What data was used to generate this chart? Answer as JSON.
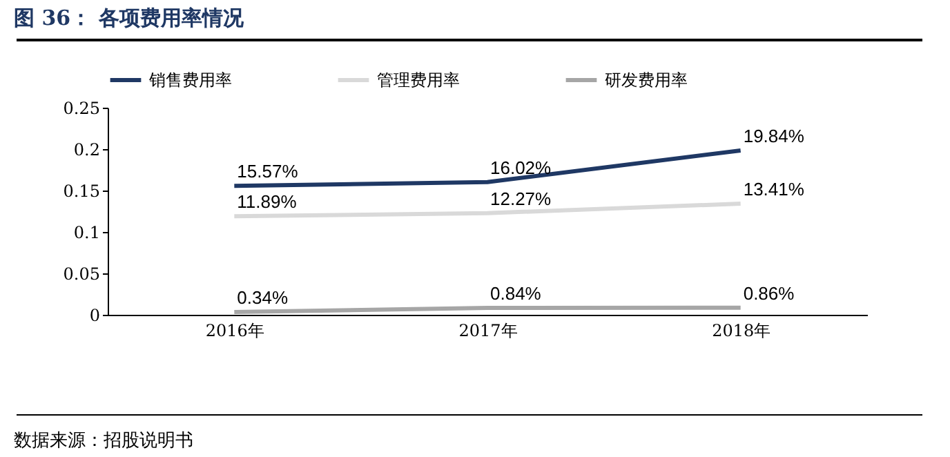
{
  "chart_data": {
    "type": "line",
    "title": "图 36：  各项费用率情况",
    "categories": [
      "2016年",
      "2017年",
      "2018年"
    ],
    "series": [
      {
        "name": "销售费用率",
        "color": "#1f3864",
        "values": [
          0.1557,
          0.1602,
          0.1984
        ],
        "value_labels": [
          "15.57%",
          "16.02%",
          "19.84%"
        ]
      },
      {
        "name": "管理费用率",
        "color": "#d9d9d9",
        "values": [
          0.1189,
          0.1227,
          0.1341
        ],
        "value_labels": [
          "11.89%",
          "12.27%",
          "13.41%"
        ]
      },
      {
        "name": "研发费用率",
        "color": "#a6a6a6",
        "values": [
          0.0034,
          0.0084,
          0.0086
        ],
        "value_labels": [
          "0.34%",
          "0.84%",
          "0.86%"
        ]
      }
    ],
    "ylim": [
      0,
      0.25
    ],
    "yticks": [
      0,
      0.05,
      0.1,
      0.15,
      0.2,
      0.25
    ],
    "grid": false,
    "legend": "top",
    "marker": "none",
    "line_style": "solid",
    "annotations": [
      "数据来源：招股说明书"
    ]
  }
}
